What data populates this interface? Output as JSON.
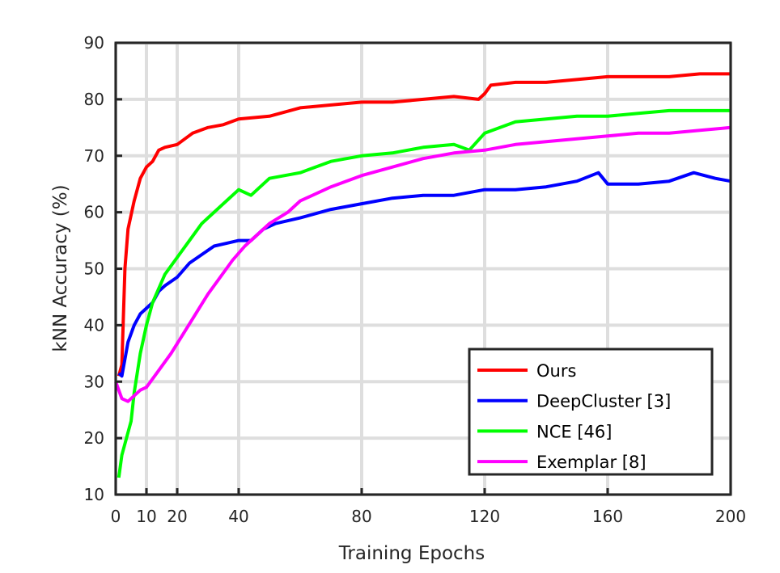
{
  "chart_data": {
    "type": "line",
    "title": "",
    "xlabel": "Training Epochs",
    "ylabel": "kNN Accuracy (%)",
    "xlim": [
      0,
      200
    ],
    "ylim": [
      10,
      90
    ],
    "xticks": [
      0,
      10,
      20,
      40,
      80,
      120,
      160,
      200
    ],
    "yticks": [
      10,
      20,
      30,
      40,
      50,
      60,
      70,
      80,
      90
    ],
    "grid": true,
    "legend_position": "bottom-right",
    "series": [
      {
        "name": "Ours",
        "color": "#ff0000",
        "x": [
          1,
          2,
          3,
          4,
          6,
          8,
          10,
          12,
          14,
          16,
          20,
          25,
          30,
          35,
          40,
          50,
          60,
          70,
          80,
          90,
          100,
          110,
          118,
          120,
          122,
          130,
          140,
          150,
          160,
          170,
          180,
          190,
          200
        ],
        "y": [
          31,
          33,
          50,
          57,
          62,
          66,
          68,
          69,
          71,
          71.5,
          72,
          74,
          75,
          75.5,
          76.5,
          77,
          78.5,
          79,
          79.5,
          79.5,
          80,
          80.5,
          80,
          81,
          82.5,
          83,
          83,
          83.5,
          84,
          84,
          84,
          84.5,
          84.5
        ]
      },
      {
        "name": "DeepCluster [3]",
        "color": "#0000ff",
        "x": [
          1,
          2,
          4,
          6,
          8,
          10,
          12,
          14,
          16,
          20,
          24,
          28,
          32,
          36,
          40,
          44,
          48,
          52,
          60,
          70,
          80,
          90,
          100,
          110,
          120,
          130,
          140,
          150,
          157,
          160,
          170,
          180,
          188,
          195,
          200
        ],
        "y": [
          31.5,
          31,
          37,
          40,
          42,
          43,
          44,
          46,
          47,
          48.5,
          51,
          52.5,
          54,
          54.5,
          55,
          55,
          57,
          58,
          59,
          60.5,
          61.5,
          62.5,
          63,
          63,
          64,
          64,
          64.5,
          65.5,
          67,
          65,
          65,
          65.5,
          67,
          66,
          65.5
        ]
      },
      {
        "name": "NCE [46]",
        "color": "#00ff00",
        "x": [
          1,
          2,
          4,
          5,
          6,
          8,
          10,
          12,
          16,
          20,
          24,
          28,
          32,
          36,
          40,
          44,
          50,
          60,
          70,
          80,
          90,
          100,
          110,
          115,
          120,
          130,
          140,
          150,
          160,
          170,
          180,
          190,
          200
        ],
        "y": [
          13,
          17,
          21,
          23,
          28,
          35,
          40,
          44,
          49,
          52,
          55,
          58,
          60,
          62,
          64,
          63,
          66,
          67,
          69,
          70,
          70.5,
          71.5,
          72,
          71,
          74,
          76,
          76.5,
          77,
          77,
          77.5,
          78,
          78,
          78
        ]
      },
      {
        "name": "Exemplar [8]",
        "color": "#ff00ff",
        "x": [
          0,
          2,
          4,
          6,
          8,
          10,
          14,
          18,
          22,
          26,
          30,
          34,
          38,
          42,
          46,
          50,
          56,
          60,
          70,
          80,
          90,
          100,
          110,
          120,
          130,
          140,
          150,
          160,
          170,
          180,
          190,
          200
        ],
        "y": [
          30,
          27,
          26.5,
          27.5,
          28.5,
          29,
          32,
          35,
          38.5,
          42,
          45.5,
          48.5,
          51.5,
          54,
          56,
          58,
          60,
          62,
          64.5,
          66.5,
          68,
          69.5,
          70.5,
          71,
          72,
          72.5,
          73,
          73.5,
          74,
          74,
          74.5,
          75
        ]
      }
    ]
  }
}
